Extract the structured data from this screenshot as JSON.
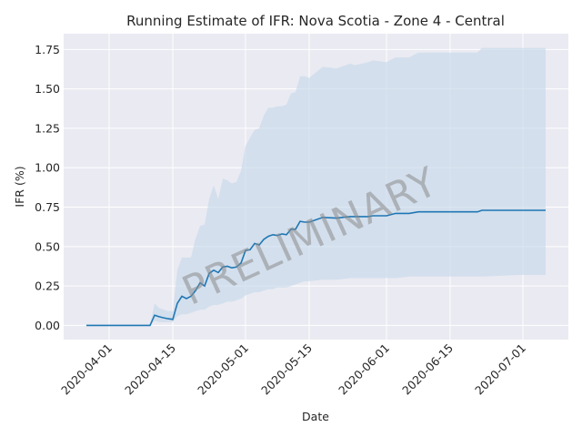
{
  "chart_data": {
    "type": "line",
    "title": "Running Estimate of IFR: Nova Scotia - Zone 4 - Central",
    "xlabel": "Date",
    "ylabel": "IFR (%)",
    "watermark": "PRELIMINARY",
    "grid": true,
    "legend": "none",
    "xlim": [
      "2020-03-22",
      "2020-07-11"
    ],
    "ylim": [
      -0.09,
      1.85
    ],
    "x_ticks": [
      "2020-04-01",
      "2020-04-15",
      "2020-05-01",
      "2020-05-15",
      "2020-06-01",
      "2020-06-15",
      "2020-07-01"
    ],
    "y_ticks": [
      "0.00",
      "0.25",
      "0.50",
      "0.75",
      "1.00",
      "1.25",
      "1.50",
      "1.75"
    ],
    "colors": {
      "line": "#1f77b4",
      "band": "#c6d9ea",
      "background": "#eaeaf2",
      "grid": "#ffffff"
    },
    "series": [
      {
        "x": [
          "2020-03-27",
          "2020-03-30",
          "2020-04-02",
          "2020-04-05",
          "2020-04-08",
          "2020-04-10",
          "2020-04-11",
          "2020-04-12",
          "2020-04-13",
          "2020-04-14",
          "2020-04-15",
          "2020-04-16",
          "2020-04-17",
          "2020-04-18",
          "2020-04-19",
          "2020-04-20",
          "2020-04-21",
          "2020-04-22",
          "2020-04-23",
          "2020-04-24",
          "2020-04-25",
          "2020-04-26",
          "2020-04-27",
          "2020-04-28",
          "2020-04-29",
          "2020-04-30",
          "2020-05-01",
          "2020-05-02",
          "2020-05-03",
          "2020-05-04",
          "2020-05-05",
          "2020-05-06",
          "2020-05-07",
          "2020-05-08",
          "2020-05-09",
          "2020-05-10",
          "2020-05-11",
          "2020-05-12",
          "2020-05-13",
          "2020-05-14",
          "2020-05-15",
          "2020-05-18",
          "2020-05-21",
          "2020-05-24",
          "2020-05-25",
          "2020-05-28",
          "2020-05-29",
          "2020-06-01",
          "2020-06-03",
          "2020-06-06",
          "2020-06-08",
          "2020-06-09",
          "2020-06-14",
          "2020-06-21",
          "2020-06-22",
          "2020-06-30",
          "2020-07-06"
        ],
        "values": [
          0.0,
          0.0,
          0.0,
          0.0,
          0.0,
          0.0,
          0.065,
          0.055,
          0.048,
          0.042,
          0.038,
          0.14,
          0.185,
          0.17,
          0.185,
          0.22,
          0.27,
          0.25,
          0.33,
          0.35,
          0.335,
          0.37,
          0.375,
          0.365,
          0.37,
          0.395,
          0.475,
          0.48,
          0.52,
          0.51,
          0.545,
          0.565,
          0.575,
          0.57,
          0.58,
          0.575,
          0.61,
          0.61,
          0.66,
          0.655,
          0.655,
          0.685,
          0.68,
          0.69,
          0.69,
          0.69,
          0.695,
          0.695,
          0.71,
          0.71,
          0.72,
          0.72,
          0.72,
          0.72,
          0.73,
          0.73,
          0.73
        ],
        "lower": [
          0.0,
          0.0,
          0.0,
          0.0,
          0.0,
          0.0,
          0.03,
          0.02,
          0.02,
          0.02,
          0.02,
          0.06,
          0.07,
          0.07,
          0.08,
          0.09,
          0.1,
          0.1,
          0.12,
          0.13,
          0.13,
          0.14,
          0.15,
          0.15,
          0.16,
          0.17,
          0.19,
          0.2,
          0.21,
          0.21,
          0.22,
          0.23,
          0.23,
          0.24,
          0.24,
          0.24,
          0.25,
          0.26,
          0.27,
          0.28,
          0.28,
          0.29,
          0.29,
          0.3,
          0.3,
          0.3,
          0.3,
          0.3,
          0.3,
          0.31,
          0.31,
          0.31,
          0.31,
          0.31,
          0.31,
          0.32,
          0.32
        ],
        "upper": [
          0.0,
          0.0,
          0.0,
          0.0,
          0.0,
          0.0,
          0.14,
          0.11,
          0.1,
          0.09,
          0.09,
          0.35,
          0.43,
          0.43,
          0.43,
          0.55,
          0.63,
          0.64,
          0.8,
          0.89,
          0.8,
          0.93,
          0.92,
          0.9,
          0.91,
          0.98,
          1.14,
          1.19,
          1.24,
          1.25,
          1.33,
          1.38,
          1.38,
          1.39,
          1.39,
          1.4,
          1.47,
          1.48,
          1.58,
          1.58,
          1.57,
          1.64,
          1.63,
          1.66,
          1.65,
          1.67,
          1.68,
          1.67,
          1.7,
          1.7,
          1.73,
          1.73,
          1.73,
          1.73,
          1.76,
          1.76,
          1.76
        ]
      }
    ]
  }
}
